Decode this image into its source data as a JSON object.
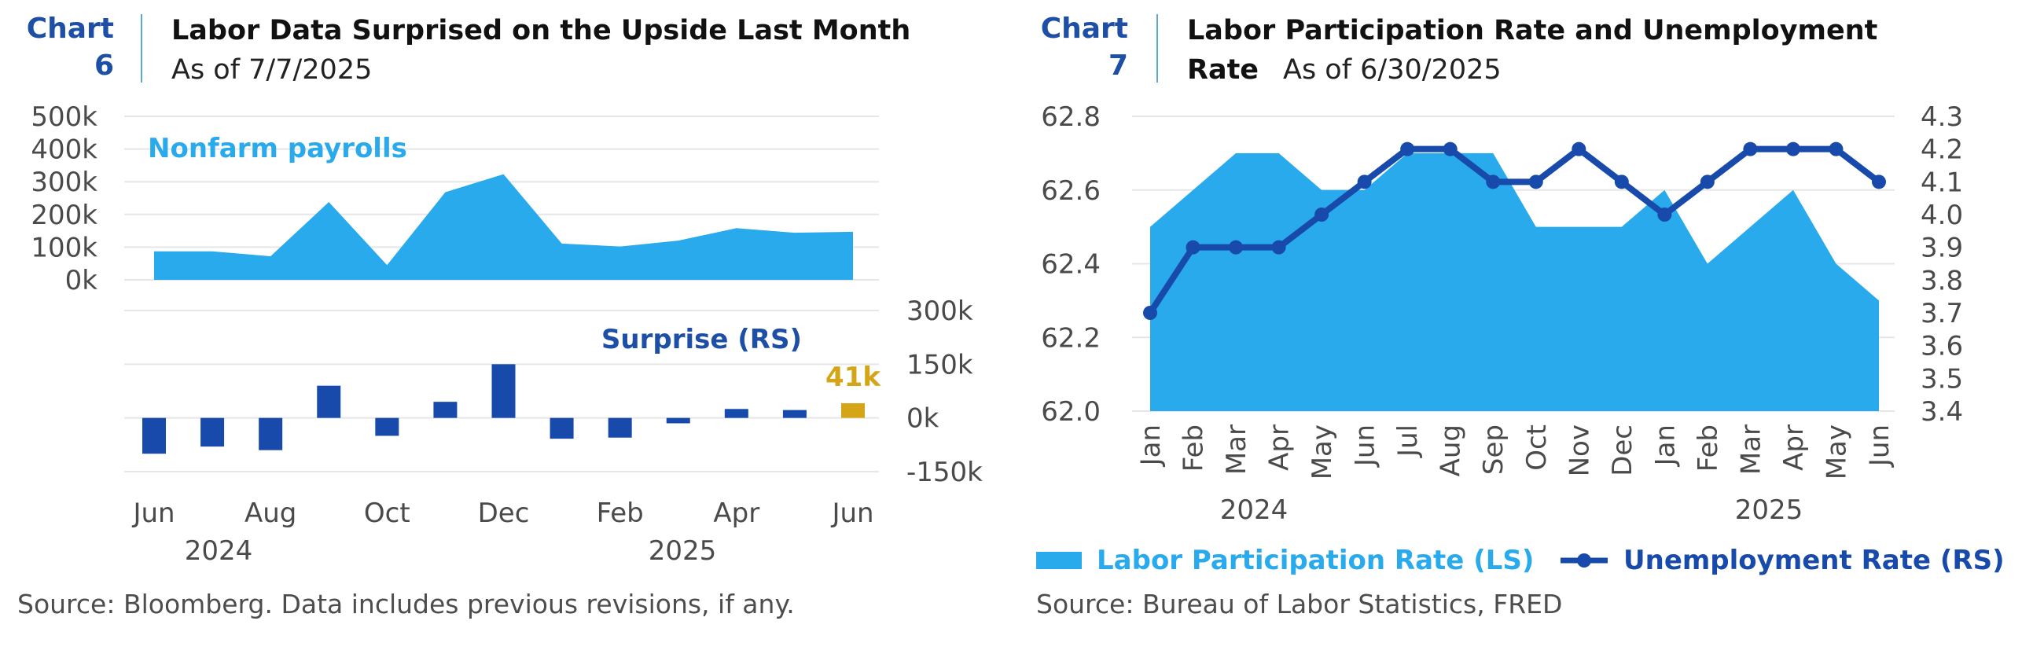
{
  "colors": {
    "navy": "#1d4fa6",
    "light_blue": "#29aaec",
    "dark_blue": "#184aab",
    "gold": "#d4a516",
    "grid": "#e6e6e6",
    "divider": "#5aa7dc"
  },
  "chart_data": [
    {
      "type": "area+bar",
      "chart_label_word": "Chart",
      "chart_label_num": "6",
      "title": "Labor Data Surprised on the Upside Last Month",
      "as_of": "As of 7/7/2025",
      "source": "Source: Bloomberg. Data includes previous revisions, if any.",
      "x": [
        "2024-06",
        "2024-07",
        "2024-08",
        "2024-09",
        "2024-10",
        "2024-11",
        "2024-12",
        "2025-01",
        "2025-02",
        "2025-03",
        "2025-04",
        "2025-05",
        "2025-06"
      ],
      "x_tick_labels": [
        "Jun",
        "Aug",
        "Oct",
        "Dec",
        "Feb",
        "Apr",
        "Jun"
      ],
      "year_labels": [
        "2024",
        "2025"
      ],
      "series": [
        {
          "name": "Nonfarm payrolls",
          "type": "area",
          "color": "#29aaec",
          "values": [
            87000,
            87000,
            72000,
            238000,
            45000,
            268000,
            323000,
            111000,
            102000,
            120000,
            158000,
            144000,
            147000
          ]
        },
        {
          "name": "Surprise (RS)",
          "type": "bar",
          "color": "#184aab",
          "values": [
            -100000,
            -80000,
            -90000,
            90000,
            -50000,
            45000,
            150000,
            -58000,
            -55000,
            -15000,
            25000,
            22000,
            41000
          ],
          "highlight_last": {
            "color": "#d4a516",
            "label": "41k"
          }
        }
      ],
      "left_axis": {
        "ticks": [
          "500k",
          "400k",
          "300k",
          "200k",
          "100k",
          "0k"
        ],
        "ylim": [
          0,
          500000
        ]
      },
      "right_axis": {
        "ticks": [
          "300k",
          "150k",
          "0k",
          "-150k"
        ],
        "ylim": [
          -150000,
          300000
        ]
      }
    },
    {
      "type": "area+line",
      "chart_label_word": "Chart",
      "chart_label_num": "7",
      "title_line1": "Labor Participation Rate and Unemployment",
      "title_line2": "Rate",
      "as_of": "As of 6/30/2025",
      "source": "Source: Bureau of Labor Statistics, FRED",
      "x": [
        "2024-01",
        "2024-02",
        "2024-03",
        "2024-04",
        "2024-05",
        "2024-06",
        "2024-07",
        "2024-08",
        "2024-09",
        "2024-10",
        "2024-11",
        "2024-12",
        "2025-01",
        "2025-02",
        "2025-03",
        "2025-04",
        "2025-05",
        "2025-06"
      ],
      "x_tick_labels": [
        "Jan",
        "Feb",
        "Mar",
        "Apr",
        "May",
        "Jun",
        "Jul",
        "Aug",
        "Sep",
        "Oct",
        "Nov",
        "Dec",
        "Jan",
        "Feb",
        "Mar",
        "Apr",
        "May",
        "Jun"
      ],
      "year_labels": [
        "2024",
        "2025"
      ],
      "series": [
        {
          "name": "Labor Participation Rate (LS)",
          "type": "area",
          "color": "#29aaec",
          "values": [
            62.5,
            62.6,
            62.7,
            62.7,
            62.6,
            62.6,
            62.7,
            62.7,
            62.7,
            62.5,
            62.5,
            62.5,
            62.6,
            62.4,
            62.5,
            62.6,
            62.4,
            62.3
          ]
        },
        {
          "name": "Unemployment Rate (RS)",
          "type": "line",
          "color": "#184aab",
          "values": [
            3.7,
            3.9,
            3.9,
            3.9,
            4.0,
            4.1,
            4.2,
            4.2,
            4.1,
            4.1,
            4.2,
            4.1,
            4.0,
            4.1,
            4.2,
            4.2,
            4.2,
            4.1
          ]
        }
      ],
      "left_axis": {
        "ticks": [
          "62.8",
          "62.6",
          "62.4",
          "62.2",
          "62.0"
        ],
        "ylim": [
          62.0,
          62.8
        ]
      },
      "right_axis": {
        "ticks": [
          "4.3",
          "4.2",
          "4.1",
          "4.0",
          "3.9",
          "3.8",
          "3.7",
          "3.6",
          "3.5",
          "3.4"
        ],
        "ylim": [
          3.4,
          4.3
        ]
      }
    }
  ]
}
